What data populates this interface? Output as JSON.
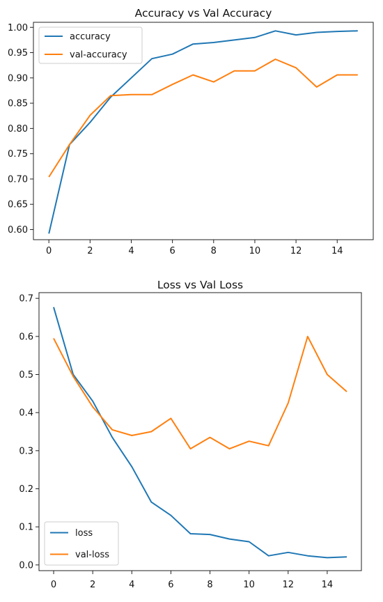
{
  "chart_data": [
    {
      "type": "line",
      "title": "Accuracy vs Val Accuracy",
      "xlabel": "",
      "ylabel": "",
      "xlim": [
        -0.75,
        15.75
      ],
      "ylim": [
        0.58,
        1.01
      ],
      "xticks": [
        0,
        2,
        4,
        6,
        8,
        10,
        12,
        14
      ],
      "yticks": [
        0.6,
        0.65,
        0.7,
        0.75,
        0.8,
        0.85,
        0.9,
        0.95,
        1.0
      ],
      "ytick_decimals": 2,
      "grid": false,
      "legend": "top-left",
      "x": [
        0,
        1,
        2,
        3,
        4,
        5,
        6,
        7,
        8,
        9,
        10,
        11,
        12,
        13,
        14,
        15
      ],
      "series": [
        {
          "name": "accuracy",
          "color": "#1f77b4",
          "values": [
            0.592,
            0.768,
            0.812,
            0.862,
            0.9,
            0.938,
            0.947,
            0.967,
            0.97,
            0.975,
            0.98,
            0.993,
            0.985,
            0.99,
            0.992,
            0.993
          ]
        },
        {
          "name": "val-accuracy",
          "color": "#ff7f0e",
          "values": [
            0.704,
            0.768,
            0.826,
            0.865,
            0.867,
            0.867,
            0.887,
            0.906,
            0.892,
            0.914,
            0.914,
            0.937,
            0.92,
            0.882,
            0.906,
            0.906
          ]
        }
      ]
    },
    {
      "type": "line",
      "title": "Loss vs Val Loss",
      "xlabel": "",
      "ylabel": "",
      "xlim": [
        -0.75,
        15.75
      ],
      "ylim": [
        -0.015,
        0.715
      ],
      "xticks": [
        0,
        2,
        4,
        6,
        8,
        10,
        12,
        14
      ],
      "yticks": [
        0.0,
        0.1,
        0.2,
        0.3,
        0.4,
        0.5,
        0.6,
        0.7
      ],
      "ytick_decimals": 1,
      "grid": false,
      "legend": "bottom-left",
      "x": [
        0,
        1,
        2,
        3,
        4,
        5,
        6,
        7,
        8,
        9,
        10,
        11,
        12,
        13,
        14,
        15
      ],
      "series": [
        {
          "name": "loss",
          "color": "#1f77b4",
          "values": [
            0.677,
            0.5,
            0.43,
            0.335,
            0.258,
            0.165,
            0.13,
            0.082,
            0.08,
            0.068,
            0.061,
            0.024,
            0.033,
            0.024,
            0.019,
            0.021
          ]
        },
        {
          "name": "val-loss",
          "color": "#ff7f0e",
          "values": [
            0.595,
            0.495,
            0.415,
            0.355,
            0.34,
            0.35,
            0.385,
            0.305,
            0.335,
            0.305,
            0.325,
            0.313,
            0.425,
            0.6,
            0.5,
            0.455
          ]
        }
      ]
    }
  ]
}
